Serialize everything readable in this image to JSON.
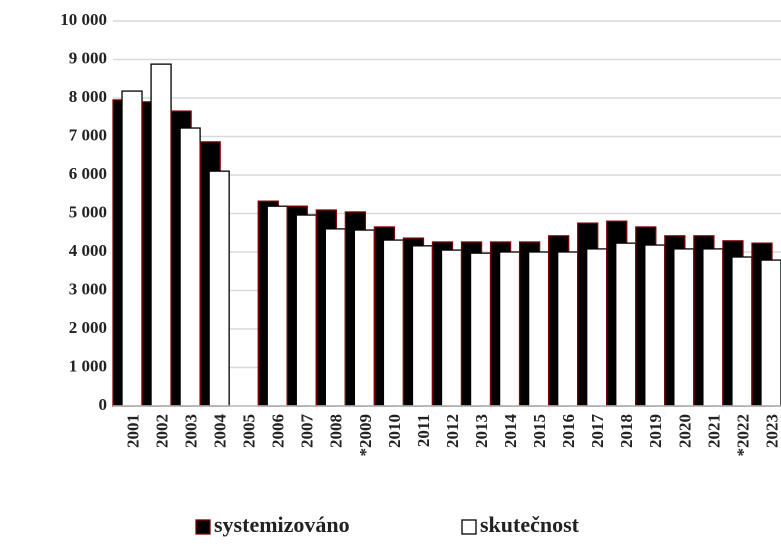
{
  "chart_data": {
    "type": "bar",
    "categories": [
      "2001",
      "2002",
      "2003",
      "2004",
      "2005",
      "2006",
      "2007",
      "2008",
      "*2009",
      "2010",
      "2011",
      "2012",
      "2013",
      "2014",
      "2015",
      "2016",
      "2017",
      "2018",
      "2019",
      "2020",
      "2021",
      "*2022",
      "2023"
    ],
    "series": [
      {
        "name": "systemizováno",
        "color": "#000000",
        "stroke": "#7f0000",
        "values": [
          7950,
          7900,
          7660,
          6860,
          null,
          5320,
          5190,
          5090,
          5040,
          4650,
          4360,
          4260,
          4260,
          4260,
          4260,
          4420,
          4750,
          4800,
          4650,
          4420,
          4420,
          4290,
          4230
        ]
      },
      {
        "name": "skutečnost",
        "color": "#ffffff",
        "stroke": "#000000",
        "values": [
          8180,
          8880,
          7220,
          6100,
          null,
          5190,
          4960,
          4600,
          4570,
          4310,
          4160,
          4050,
          3970,
          4000,
          4000,
          4000,
          4080,
          4230,
          4180,
          4080,
          4080,
          3870,
          3790
        ]
      }
    ],
    "ylim": [
      0,
      10000
    ],
    "yticks": [
      0,
      {
        "value": 1000,
        "label": "1 000"
      },
      {
        "value": 2000,
        "label": "2 000"
      },
      {
        "value": 3000,
        "label": "3 000"
      },
      {
        "value": 4000,
        "label": "4 000"
      },
      {
        "value": 5000,
        "label": "5 000"
      },
      {
        "value": 6000,
        "label": "6 000"
      },
      {
        "value": 7000,
        "label": "7 000"
      },
      {
        "value": 8000,
        "label": "8 000"
      },
      {
        "value": 9000,
        "label": "9 000"
      },
      {
        "value": 10000,
        "label": "10 000"
      }
    ],
    "grid": true,
    "legend": "bottom"
  }
}
